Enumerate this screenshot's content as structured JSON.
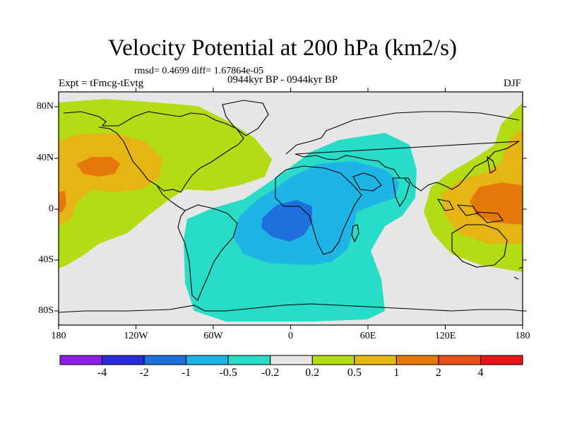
{
  "title": "Velocity Potential at 200 hPa (km2/s)",
  "stats": "rmsd= 0.4699 diff= 1.67864e-05",
  "experiment": "Expt = tFmcg-tEvtg",
  "period": "0944kyr BP - 0944kyr BP",
  "season": "DJF",
  "lat_labels": [
    "80N",
    "40N",
    "0",
    "40S",
    "80S"
  ],
  "lon_labels": [
    "180",
    "120W",
    "60W",
    "0",
    "60E",
    "120E",
    "180"
  ],
  "colorbar": {
    "labels": [
      "-4",
      "-2",
      "-1",
      "-0.5",
      "-0.2",
      "0.2",
      "0.5",
      "1",
      "2",
      "4"
    ],
    "colors": [
      "#8c1ce6",
      "#2828dc",
      "#1e6edc",
      "#1eb4e6",
      "#28dcc8",
      "#e6e6e6",
      "#b4dc14",
      "#e6b414",
      "#e6780a",
      "#e65014",
      "#e61414"
    ]
  }
}
